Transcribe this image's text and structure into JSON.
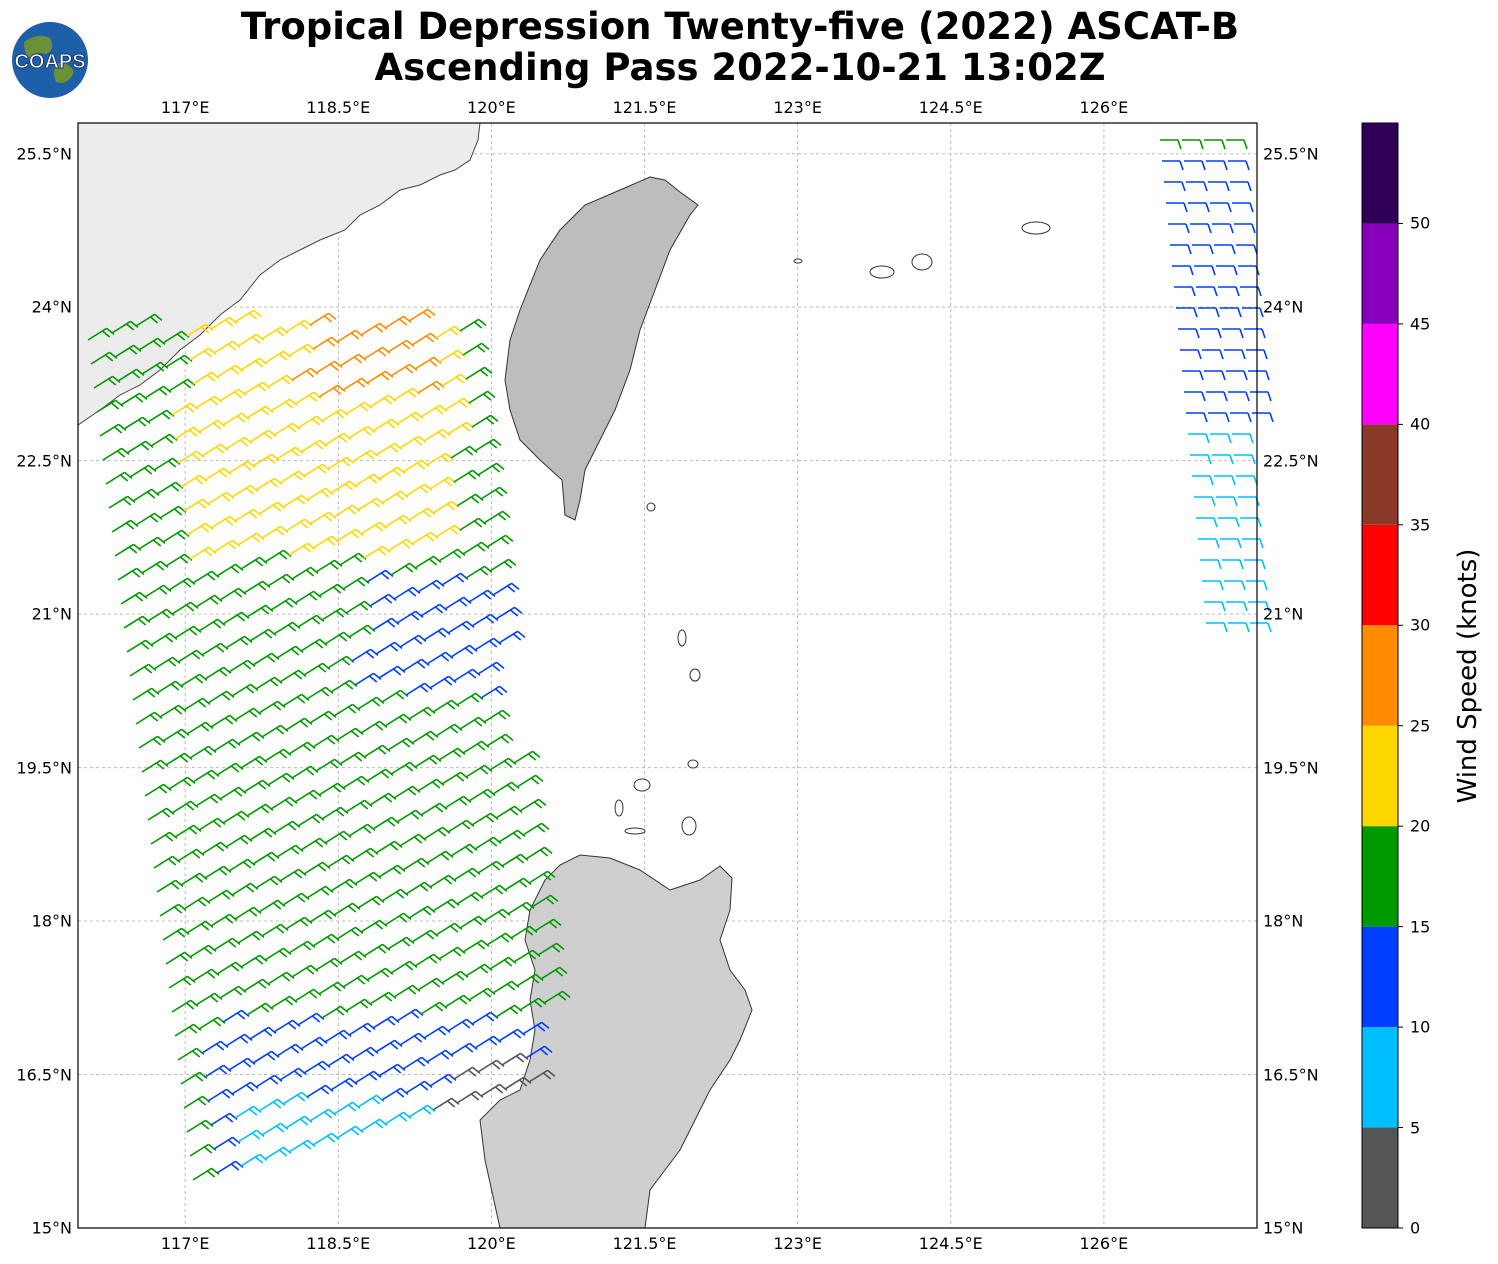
{
  "title": {
    "line1": "Tropical Depression Twenty-five (2022) ASCAT-B",
    "line2": "Ascending Pass 2022-10-21 13:02Z"
  },
  "logo": {
    "text": "COAPS"
  },
  "map": {
    "lon_ticks": [
      "117°E",
      "118.5°E",
      "120°E",
      "121.5°E",
      "123°E",
      "124.5°E",
      "126°E"
    ],
    "lat_ticks": [
      "25.5°N",
      "24°N",
      "22.5°N",
      "21°N",
      "19.5°N",
      "18°N",
      "16.5°N",
      "15°N"
    ],
    "lon_range": [
      115.95,
      127.5
    ],
    "lat_range": [
      15.0,
      25.8
    ],
    "grid": true
  },
  "colorbar": {
    "label": "Wind Speed (knots)",
    "ticks": [
      "0",
      "5",
      "10",
      "15",
      "20",
      "25",
      "30",
      "35",
      "40",
      "45",
      "50"
    ],
    "colors": [
      "#555555",
      "#00bfff",
      "#003fff",
      "#009900",
      "#ffd700",
      "#ff8c00",
      "#ff0000",
      "#8b3a2a",
      "#ff00ff",
      "#8800bb",
      "#2e0057"
    ]
  }
}
